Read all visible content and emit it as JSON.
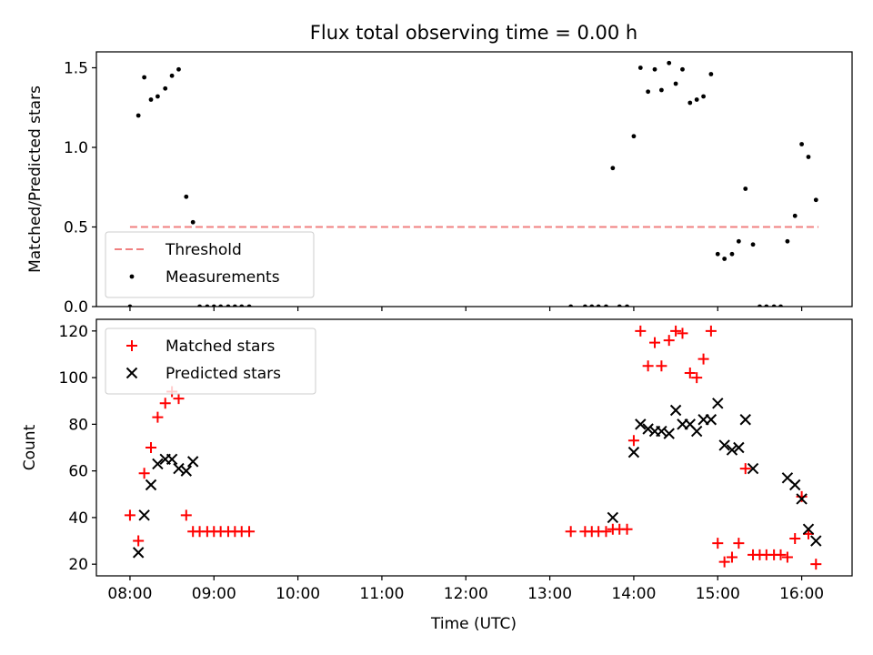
{
  "chart_data": {
    "title": "Flux total observing time = 0.00 h",
    "xlabel": "Time (UTC)",
    "x_unit": "hours UTC",
    "xlim": [
      7.6,
      16.6
    ],
    "x_ticks": [
      8,
      9,
      10,
      11,
      12,
      13,
      14,
      15,
      16
    ],
    "x_tick_labels": [
      "08:00",
      "09:00",
      "10:00",
      "11:00",
      "12:00",
      "13:00",
      "14:00",
      "15:00",
      "16:00"
    ],
    "panels": [
      {
        "type": "scatter",
        "ylabel": "Matched/Predicted stars",
        "ylim": [
          0,
          1.6
        ],
        "y_ticks": [
          0,
          0.5,
          1.0,
          1.5
        ],
        "y_tick_labels": [
          "0.0",
          "0.5",
          "1.0",
          "1.5"
        ],
        "legend": "lower-left",
        "threshold": {
          "name": "Threshold",
          "y": 0.5,
          "x_range": [
            8.0,
            16.2
          ],
          "color": "#f08080"
        },
        "series": [
          {
            "name": "Measurements",
            "marker": "dot",
            "color": "#000000",
            "points": [
              [
                8.0,
                0.0
              ],
              [
                8.1,
                1.2
              ],
              [
                8.17,
                1.44
              ],
              [
                8.25,
                1.3
              ],
              [
                8.33,
                1.32
              ],
              [
                8.42,
                1.37
              ],
              [
                8.5,
                1.45
              ],
              [
                8.58,
                1.49
              ],
              [
                8.67,
                0.69
              ],
              [
                8.75,
                0.53
              ],
              [
                8.83,
                0.0
              ],
              [
                8.92,
                0.0
              ],
              [
                9.0,
                0.0
              ],
              [
                9.08,
                0.0
              ],
              [
                9.17,
                0.0
              ],
              [
                9.25,
                0.0
              ],
              [
                9.33,
                0.0
              ],
              [
                9.42,
                0.0
              ],
              [
                13.25,
                0.0
              ],
              [
                13.42,
                0.0
              ],
              [
                13.5,
                0.0
              ],
              [
                13.58,
                0.0
              ],
              [
                13.67,
                0.0
              ],
              [
                13.75,
                0.87
              ],
              [
                13.83,
                0.0
              ],
              [
                13.92,
                0.0
              ],
              [
                14.0,
                1.07
              ],
              [
                14.08,
                1.5
              ],
              [
                14.17,
                1.35
              ],
              [
                14.25,
                1.49
              ],
              [
                14.33,
                1.36
              ],
              [
                14.42,
                1.53
              ],
              [
                14.5,
                1.4
              ],
              [
                14.58,
                1.49
              ],
              [
                14.67,
                1.28
              ],
              [
                14.75,
                1.3
              ],
              [
                14.83,
                1.32
              ],
              [
                14.92,
                1.46
              ],
              [
                15.0,
                0.33
              ],
              [
                15.08,
                0.3
              ],
              [
                15.17,
                0.33
              ],
              [
                15.25,
                0.41
              ],
              [
                15.33,
                0.74
              ],
              [
                15.42,
                0.39
              ],
              [
                15.5,
                0.0
              ],
              [
                15.58,
                0.0
              ],
              [
                15.67,
                0.0
              ],
              [
                15.75,
                0.0
              ],
              [
                15.83,
                0.41
              ],
              [
                15.92,
                0.57
              ],
              [
                16.0,
                1.02
              ],
              [
                16.08,
                0.94
              ],
              [
                16.17,
                0.67
              ]
            ]
          }
        ]
      },
      {
        "type": "scatter",
        "ylabel": "Count",
        "ylim": [
          15,
          125
        ],
        "y_ticks": [
          20,
          40,
          60,
          80,
          100,
          120
        ],
        "y_tick_labels": [
          "20",
          "40",
          "60",
          "80",
          "100",
          "120"
        ],
        "legend": "top-left",
        "series": [
          {
            "name": "Matched stars",
            "marker": "plus",
            "color": "#ff0000",
            "points": [
              [
                8.0,
                41
              ],
              [
                8.1,
                30
              ],
              [
                8.17,
                59
              ],
              [
                8.25,
                70
              ],
              [
                8.33,
                83
              ],
              [
                8.42,
                89
              ],
              [
                8.5,
                94
              ],
              [
                8.58,
                91
              ],
              [
                8.67,
                41
              ],
              [
                8.75,
                34
              ],
              [
                8.83,
                34
              ],
              [
                8.92,
                34
              ],
              [
                9.0,
                34
              ],
              [
                9.08,
                34
              ],
              [
                9.17,
                34
              ],
              [
                9.25,
                34
              ],
              [
                9.33,
                34
              ],
              [
                9.42,
                34
              ],
              [
                13.25,
                34
              ],
              [
                13.42,
                34
              ],
              [
                13.5,
                34
              ],
              [
                13.58,
                34
              ],
              [
                13.67,
                34
              ],
              [
                13.75,
                35
              ],
              [
                13.83,
                35
              ],
              [
                13.92,
                35
              ],
              [
                14.0,
                73
              ],
              [
                14.08,
                120
              ],
              [
                14.17,
                105
              ],
              [
                14.25,
                115
              ],
              [
                14.33,
                105
              ],
              [
                14.42,
                116
              ],
              [
                14.5,
                120
              ],
              [
                14.58,
                119
              ],
              [
                14.67,
                102
              ],
              [
                14.75,
                100
              ],
              [
                14.83,
                108
              ],
              [
                14.92,
                120
              ],
              [
                15.0,
                29
              ],
              [
                15.08,
                21
              ],
              [
                15.17,
                23
              ],
              [
                15.25,
                29
              ],
              [
                15.33,
                61
              ],
              [
                15.42,
                24
              ],
              [
                15.5,
                24
              ],
              [
                15.58,
                24
              ],
              [
                15.67,
                24
              ],
              [
                15.75,
                24
              ],
              [
                15.83,
                23
              ],
              [
                15.92,
                31
              ],
              [
                16.0,
                49
              ],
              [
                16.08,
                33
              ],
              [
                16.17,
                20
              ]
            ]
          },
          {
            "name": "Predicted stars",
            "marker": "x",
            "color": "#000000",
            "points": [
              [
                8.1,
                25
              ],
              [
                8.17,
                41
              ],
              [
                8.25,
                54
              ],
              [
                8.33,
                63
              ],
              [
                8.42,
                65
              ],
              [
                8.5,
                65
              ],
              [
                8.58,
                61
              ],
              [
                8.67,
                60
              ],
              [
                8.75,
                64
              ],
              [
                13.75,
                40
              ],
              [
                14.0,
                68
              ],
              [
                14.08,
                80
              ],
              [
                14.17,
                78
              ],
              [
                14.25,
                77
              ],
              [
                14.33,
                77
              ],
              [
                14.42,
                76
              ],
              [
                14.5,
                86
              ],
              [
                14.58,
                80
              ],
              [
                14.67,
                80
              ],
              [
                14.75,
                77
              ],
              [
                14.83,
                82
              ],
              [
                14.92,
                82
              ],
              [
                15.0,
                89
              ],
              [
                15.08,
                71
              ],
              [
                15.17,
                69
              ],
              [
                15.25,
                70
              ],
              [
                15.33,
                82
              ],
              [
                15.42,
                61
              ],
              [
                15.83,
                57
              ],
              [
                15.92,
                54
              ],
              [
                16.0,
                48
              ],
              [
                16.08,
                35
              ],
              [
                16.17,
                30
              ]
            ]
          }
        ]
      }
    ]
  }
}
